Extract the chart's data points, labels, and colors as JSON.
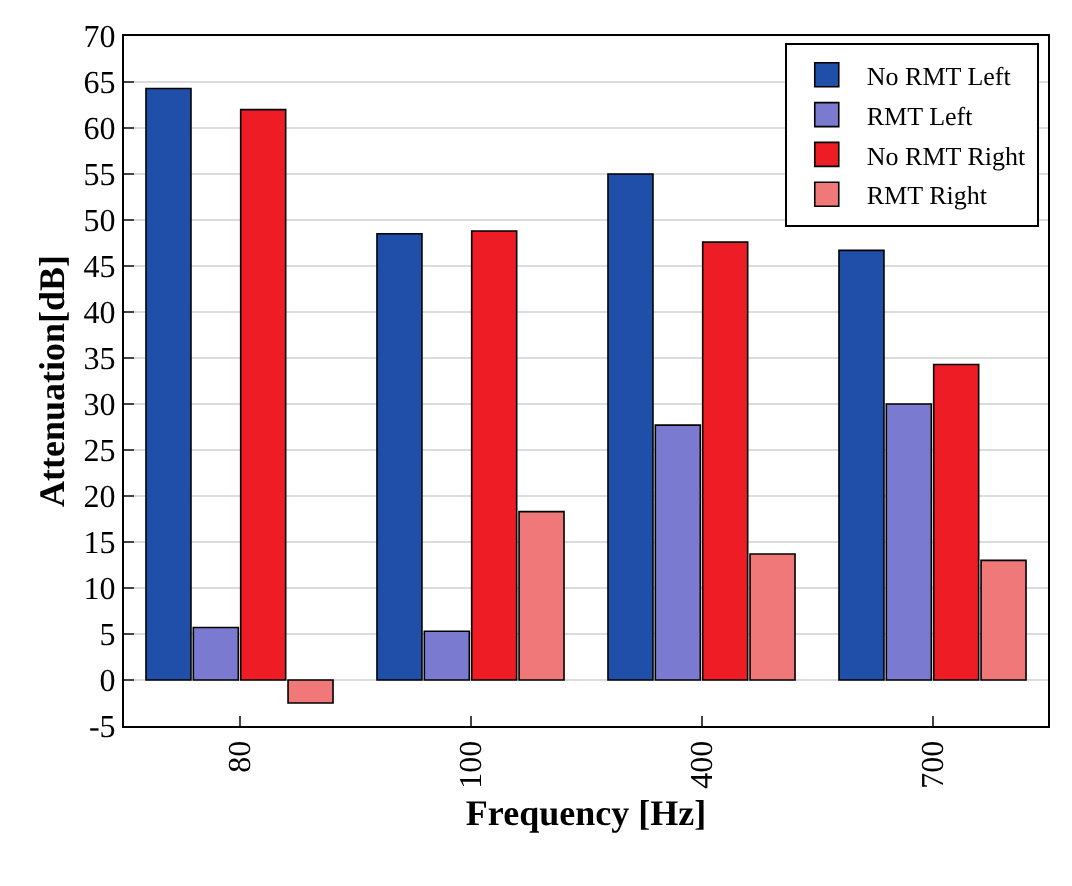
{
  "chart_data": {
    "type": "bar",
    "xlabel": "Frequency [Hz]",
    "ylabel": "Attenuation[dB]",
    "categories": [
      "80",
      "100",
      "400",
      "700"
    ],
    "series": [
      {
        "name": "No RMT Left",
        "color": "#1f4fa8",
        "values": [
          64.3,
          48.5,
          55,
          46.7
        ]
      },
      {
        "name": "RMT Left",
        "color": "#7a7bd0",
        "values": [
          5.7,
          5.3,
          27.7,
          30
        ]
      },
      {
        "name": "No RMT Right",
        "color": "#ee1c25",
        "values": [
          62,
          48.8,
          47.6,
          34.3
        ]
      },
      {
        "name": "RMT Right",
        "color": "#f07878",
        "values": [
          -2.5,
          18.3,
          13.7,
          13
        ]
      }
    ],
    "ylim": [
      -5,
      70
    ],
    "yticks": [
      -5,
      0,
      5,
      10,
      15,
      20,
      25,
      30,
      35,
      40,
      45,
      50,
      55,
      60,
      65,
      70
    ],
    "grid": "y",
    "legend": "top right"
  }
}
